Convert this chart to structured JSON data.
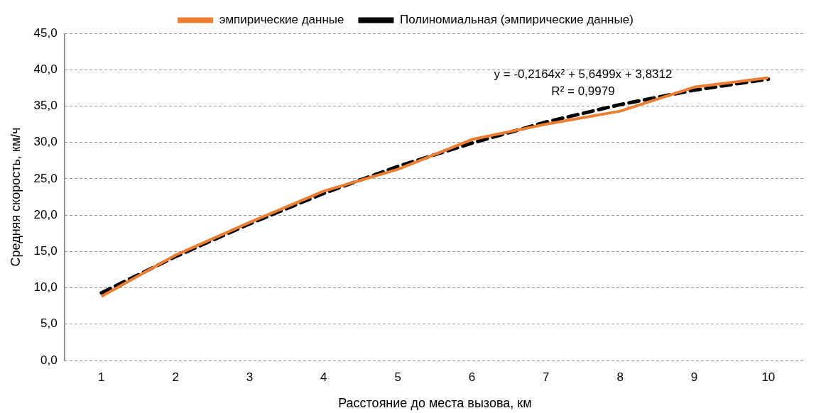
{
  "chart_data": {
    "type": "line",
    "xlabel": "Расстояние до места вызова, км",
    "ylabel": "Средняя скорость, км/ч",
    "categories": [
      "1",
      "2",
      "3",
      "4",
      "5",
      "6",
      "7",
      "8",
      "9",
      "10"
    ],
    "series": [
      {
        "name": "эмпирические данные",
        "color": "#ed7d31",
        "line_style": "solid",
        "values": [
          8.8,
          14.5,
          19.0,
          23.3,
          26.3,
          30.4,
          32.5,
          34.3,
          37.6,
          38.9
        ]
      },
      {
        "name": "Полиномиальная (эмпирические данные)",
        "color": "#000000",
        "line_style": "dashed",
        "values": [
          9.3,
          14.3,
          18.8,
          23.0,
          26.7,
          29.9,
          32.8,
          35.2,
          37.2,
          38.7
        ]
      }
    ],
    "ylim": [
      0,
      45
    ],
    "yticks": [
      {
        "value": 0,
        "label": "0,0"
      },
      {
        "value": 5,
        "label": "5,0"
      },
      {
        "value": 10,
        "label": "10,0"
      },
      {
        "value": 15,
        "label": "15,0"
      },
      {
        "value": 20,
        "label": "20,0"
      },
      {
        "value": 25,
        "label": "25,0"
      },
      {
        "value": 30,
        "label": "30,0"
      },
      {
        "value": 35,
        "label": "35,0"
      },
      {
        "value": 40,
        "label": "40,0"
      },
      {
        "value": 45,
        "label": "45,0"
      }
    ],
    "grid": "y",
    "legend": "top",
    "marker": "none",
    "annotations": [
      "y = -0,2164x² + 5,6499x + 3,8312",
      "R² = 0,9979"
    ]
  }
}
